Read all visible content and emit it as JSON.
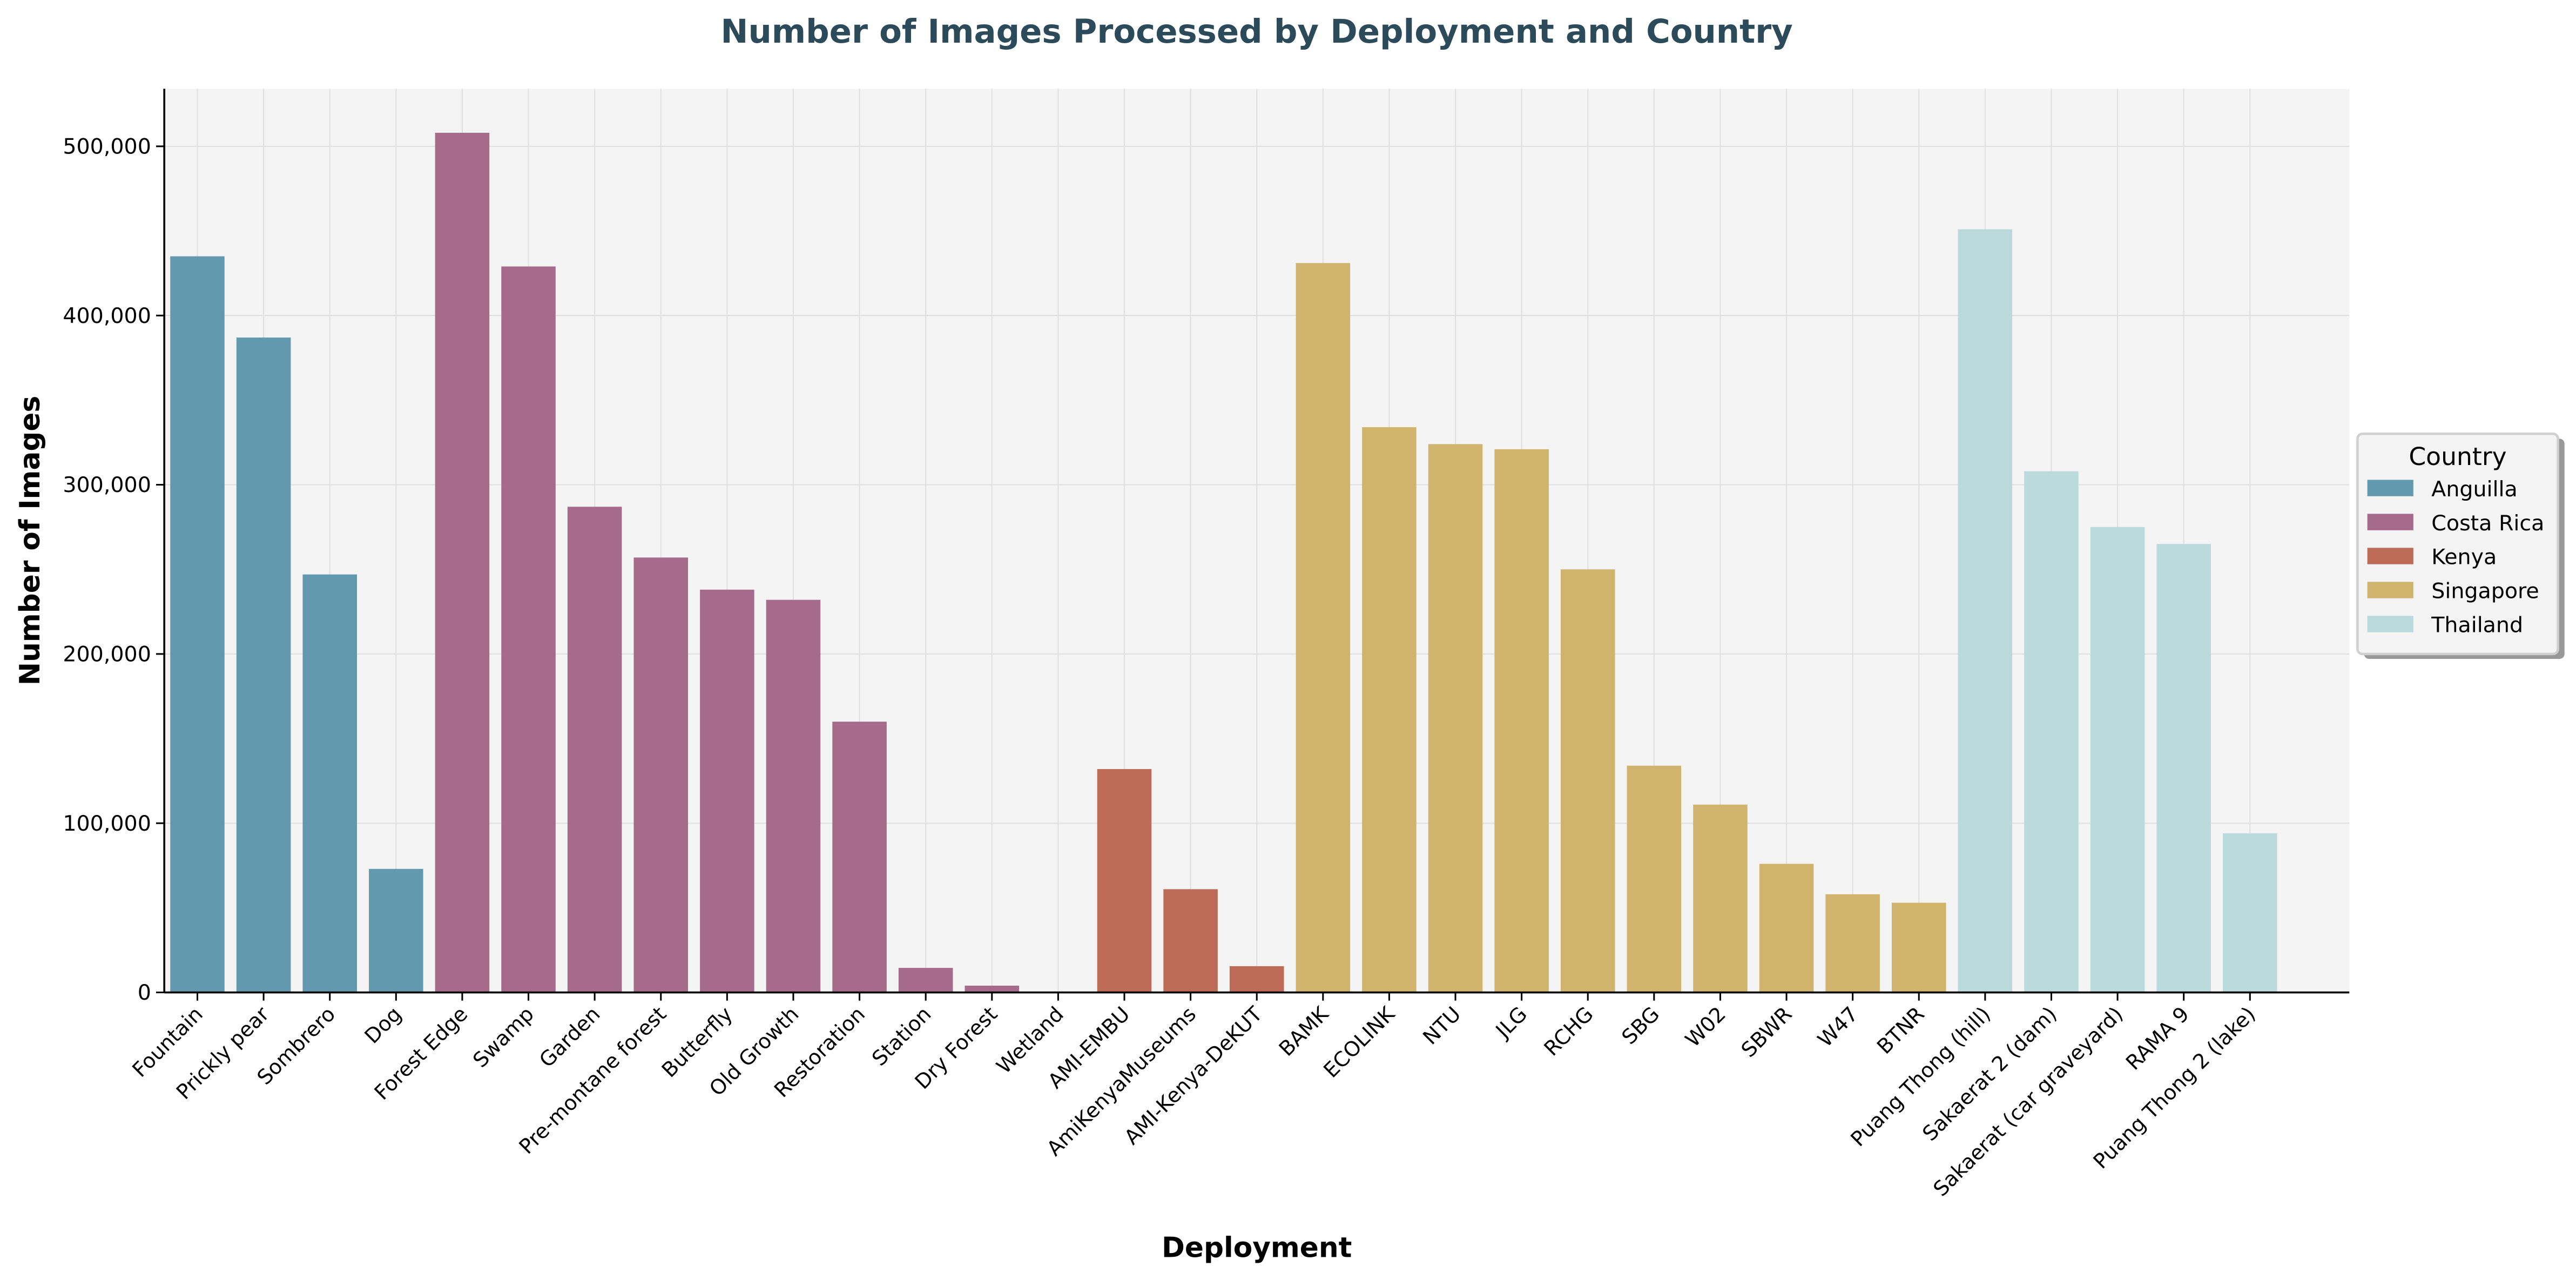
{
  "chart_data": {
    "type": "bar",
    "title": "Number of Images Processed by Deployment and Country",
    "xlabel": "Deployment",
    "ylabel": "Number of Images",
    "ylim": [
      0,
      534000
    ],
    "yticks": [
      0,
      100000,
      200000,
      300000,
      400000,
      500000
    ],
    "ytick_labels": [
      "0",
      "100,000",
      "200,000",
      "300,000",
      "400,000",
      "500,000"
    ],
    "grid": true,
    "legend": {
      "title": "Country",
      "placement": "right",
      "entries": [
        {
          "name": "Anguilla",
          "color": "#6399ae"
        },
        {
          "name": "Costa Rica",
          "color": "#a66a8a"
        },
        {
          "name": "Kenya",
          "color": "#bd6b56"
        },
        {
          "name": "Singapore",
          "color": "#d0b46d"
        },
        {
          "name": "Thailand",
          "color": "#bbdadb"
        }
      ]
    },
    "categories": [
      "Fountain",
      "Prickly pear",
      "Sombrero",
      "Dog",
      "Forest Edge",
      "Swamp",
      "Garden",
      "Pre-montane forest",
      "Butterfly",
      "Old Growth",
      "Restoration",
      "Station",
      "Dry Forest",
      "Wetland",
      "AMI-EMBU",
      "AmiKenyaMuseums",
      "AMI-Kenya-DeKUT",
      "BAMK",
      "ECOLINK",
      "NTU",
      "JLG",
      "RCHG",
      "SBG",
      "W02",
      "SBWR",
      "W47",
      "BTNR",
      "Puang Thong (hill)",
      "Sakaerat 2 (dam)",
      "Sakaerat (car graveyard)",
      "RAMA 9",
      "Puang Thong 2 (lake)"
    ],
    "countries": [
      "Anguilla",
      "Anguilla",
      "Anguilla",
      "Anguilla",
      "Costa Rica",
      "Costa Rica",
      "Costa Rica",
      "Costa Rica",
      "Costa Rica",
      "Costa Rica",
      "Costa Rica",
      "Costa Rica",
      "Costa Rica",
      "Costa Rica",
      "Kenya",
      "Kenya",
      "Kenya",
      "Singapore",
      "Singapore",
      "Singapore",
      "Singapore",
      "Singapore",
      "Singapore",
      "Singapore",
      "Singapore",
      "Singapore",
      "Singapore",
      "Thailand",
      "Thailand",
      "Thailand",
      "Thailand",
      "Thailand"
    ],
    "values": [
      435000,
      387000,
      247000,
      73000,
      508000,
      429000,
      287000,
      257000,
      238000,
      232000,
      160000,
      14500,
      4000,
      0,
      132000,
      61000,
      15500,
      431000,
      334000,
      324000,
      321000,
      250000,
      134000,
      111000,
      76000,
      58000,
      53000,
      451000,
      308000,
      275000,
      265000,
      94000
    ]
  }
}
